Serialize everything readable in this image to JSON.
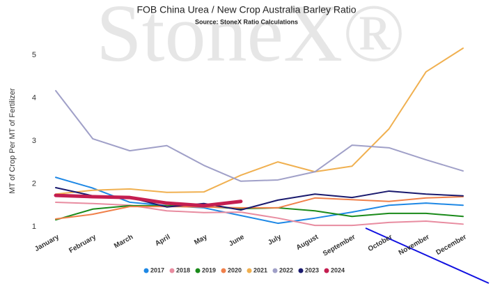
{
  "chart_data": {
    "type": "line",
    "title": "FOB China Urea / New Crop Australia Barley Ratio",
    "subtitle": "Source: StoneX Ratio Calculations",
    "y_label": "MT of Crop Per MT of Fertilizer",
    "watermark": "StoneX®",
    "categories": [
      "January",
      "February",
      "March",
      "April",
      "May",
      "June",
      "July",
      "August",
      "September",
      "October",
      "November",
      "December"
    ],
    "ylim": [
      1,
      5.3
    ],
    "yticks": [
      1,
      2,
      3,
      4,
      5
    ],
    "grid": false,
    "legend": "bottom",
    "series": [
      {
        "name": "2017",
        "color": "#1e88e5",
        "width": 2,
        "values": [
          2.15,
          1.9,
          1.57,
          1.49,
          1.44,
          1.26,
          1.08,
          1.2,
          1.34,
          1.5,
          1.55,
          1.5
        ]
      },
      {
        "name": "2018",
        "color": "#e88ca0",
        "width": 2,
        "values": [
          1.57,
          1.54,
          1.5,
          1.37,
          1.33,
          1.34,
          1.2,
          1.03,
          1.03,
          1.1,
          1.13,
          1.06
        ]
      },
      {
        "name": "2019",
        "color": "#1a8a1a",
        "width": 2,
        "values": [
          1.16,
          1.41,
          1.49,
          1.49,
          1.47,
          1.42,
          1.44,
          1.37,
          1.24,
          1.31,
          1.31,
          1.24
        ]
      },
      {
        "name": "2020",
        "color": "#f0804a",
        "width": 2,
        "values": [
          1.18,
          1.29,
          1.47,
          1.47,
          1.46,
          1.44,
          1.44,
          1.67,
          1.63,
          1.59,
          1.67,
          1.7
        ]
      },
      {
        "name": "2021",
        "color": "#f0b050",
        "width": 2,
        "values": [
          1.76,
          1.85,
          1.88,
          1.8,
          1.81,
          2.2,
          2.51,
          2.28,
          2.41,
          3.28,
          4.61,
          5.16
        ]
      },
      {
        "name": "2022",
        "color": "#a0a0c8",
        "width": 2,
        "values": [
          4.17,
          3.05,
          2.77,
          2.89,
          2.43,
          2.06,
          2.09,
          2.28,
          2.9,
          2.84,
          2.56,
          2.3
        ]
      },
      {
        "name": "2023",
        "color": "#1a1a6e",
        "width": 2,
        "values": [
          1.91,
          1.72,
          1.68,
          1.46,
          1.54,
          1.39,
          1.62,
          1.76,
          1.68,
          1.83,
          1.76,
          1.72
        ]
      },
      {
        "name": "2024",
        "color": "#c41e50",
        "width": 5,
        "values": [
          1.73,
          1.7,
          1.68,
          1.55,
          1.49,
          1.59,
          null,
          null,
          null,
          null,
          null,
          null
        ]
      }
    ]
  }
}
